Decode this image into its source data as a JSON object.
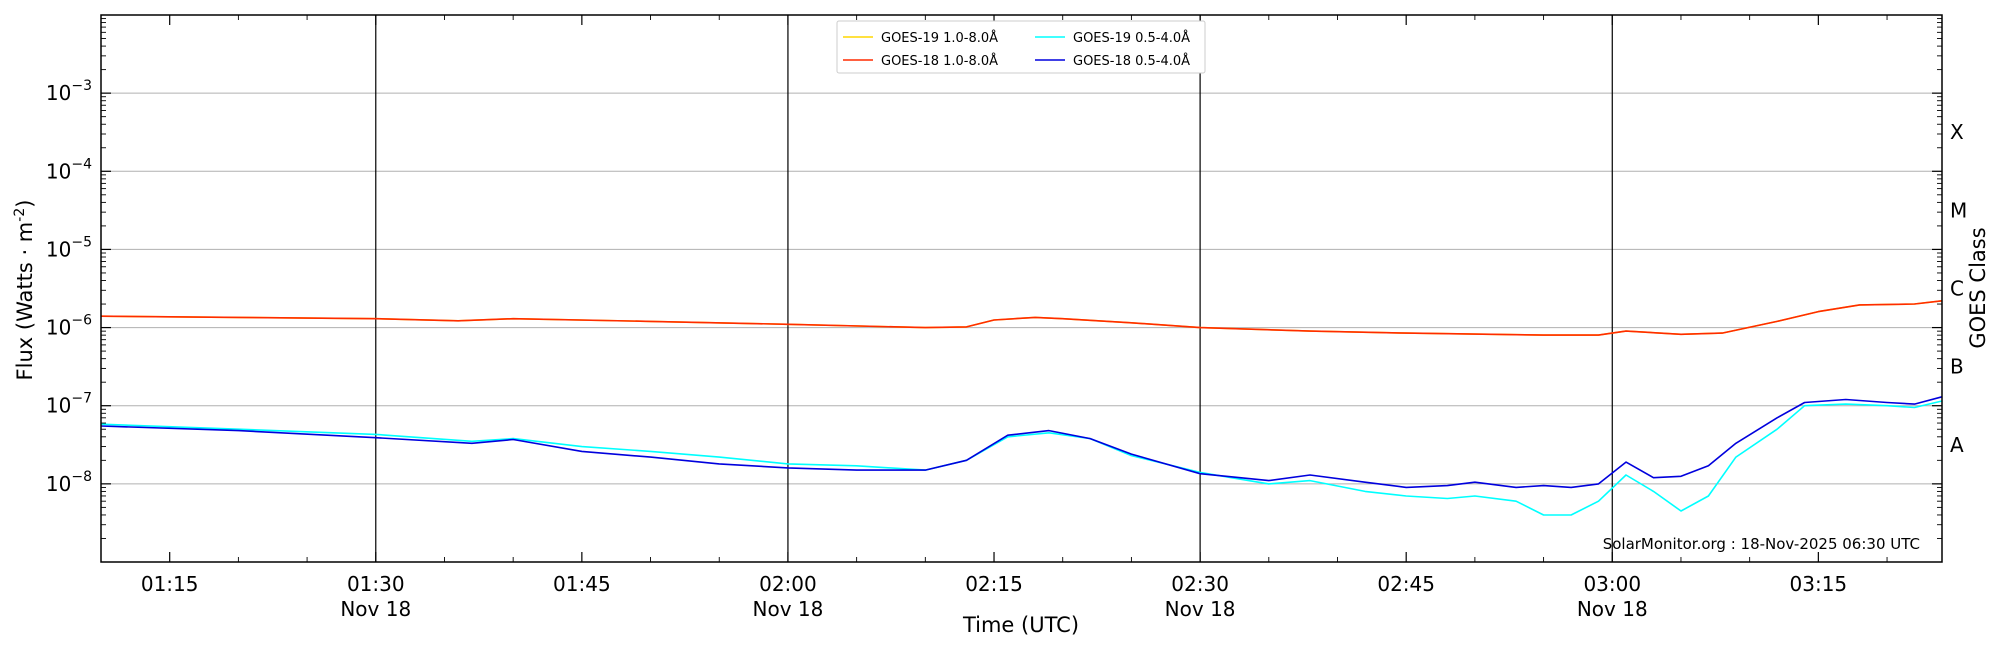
{
  "chart_data": {
    "type": "line",
    "xlabel": "Time (UTC)",
    "ylabel": "Flux (Watts · m",
    "ylabel_sup": "-2",
    "ylabel_close": ")",
    "right_label": "GOES Class",
    "watermark": "SolarMonitor.org : 18-Nov-2025 06:30 UTC",
    "y_scale": "log",
    "ylim": [
      1e-09,
      0.01
    ],
    "xlim": [
      "01:10",
      "03:24"
    ],
    "legend_placement": "top-center",
    "grid": "horizontal at decades, vertical at half-hours",
    "x_ticks": [
      {
        "time": "01:15",
        "label": "01:15",
        "sub": ""
      },
      {
        "time": "01:30",
        "label": "01:30",
        "sub": "Nov 18"
      },
      {
        "time": "01:45",
        "label": "01:45",
        "sub": ""
      },
      {
        "time": "02:00",
        "label": "02:00",
        "sub": "Nov 18"
      },
      {
        "time": "02:15",
        "label": "02:15",
        "sub": ""
      },
      {
        "time": "02:30",
        "label": "02:30",
        "sub": "Nov 18"
      },
      {
        "time": "02:45",
        "label": "02:45",
        "sub": ""
      },
      {
        "time": "03:00",
        "label": "03:00",
        "sub": "Nov 18"
      },
      {
        "time": "03:15",
        "label": "03:15",
        "sub": ""
      }
    ],
    "y_ticks": [
      {
        "base": "10",
        "exp": "−8",
        "value": 1e-08
      },
      {
        "base": "10",
        "exp": "−7",
        "value": 1e-07
      },
      {
        "base": "10",
        "exp": "−6",
        "value": 1e-06
      },
      {
        "base": "10",
        "exp": "−5",
        "value": 1e-05
      },
      {
        "base": "10",
        "exp": "−4",
        "value": 0.0001
      },
      {
        "base": "10",
        "exp": "−3",
        "value": 0.001
      }
    ],
    "class_labels": [
      {
        "label": "A",
        "value": 1e-08
      },
      {
        "label": "B",
        "value": 1e-07
      },
      {
        "label": "C",
        "value": 1e-06
      },
      {
        "label": "M",
        "value": 1e-05
      },
      {
        "label": "X",
        "value": 0.0001
      }
    ],
    "series": [
      {
        "name": "GOES-19 1.0-8.0Å",
        "color": "#ffd700",
        "x": [
          "01:10",
          "01:20",
          "01:30",
          "01:36",
          "01:40",
          "01:50",
          "02:00",
          "02:10",
          "02:13",
          "02:15",
          "02:18",
          "02:20",
          "02:25",
          "02:30",
          "02:38",
          "02:45",
          "02:55",
          "02:59",
          "03:01",
          "03:05",
          "03:08",
          "03:12",
          "03:15",
          "03:18",
          "03:22",
          "03:24"
        ],
        "y": [
          1.4e-06,
          1.35e-06,
          1.3e-06,
          1.22e-06,
          1.3e-06,
          1.2e-06,
          1.1e-06,
          1e-06,
          1.02e-06,
          1.25e-06,
          1.35e-06,
          1.3e-06,
          1.15e-06,
          1e-06,
          9e-07,
          8.5e-07,
          8e-07,
          8e-07,
          9e-07,
          8.2e-07,
          8.5e-07,
          1.2e-06,
          1.6e-06,
          1.95e-06,
          2e-06,
          2.2e-06
        ]
      },
      {
        "name": "GOES-18 1.0-8.0Å",
        "color": "#ff2b00",
        "x": [
          "01:10",
          "01:20",
          "01:30",
          "01:36",
          "01:40",
          "01:50",
          "02:00",
          "02:10",
          "02:13",
          "02:15",
          "02:18",
          "02:20",
          "02:25",
          "02:30",
          "02:38",
          "02:45",
          "02:55",
          "02:59",
          "03:01",
          "03:05",
          "03:08",
          "03:12",
          "03:15",
          "03:18",
          "03:22",
          "03:24"
        ],
        "y": [
          1.4e-06,
          1.35e-06,
          1.3e-06,
          1.22e-06,
          1.3e-06,
          1.2e-06,
          1.1e-06,
          1e-06,
          1.02e-06,
          1.25e-06,
          1.35e-06,
          1.3e-06,
          1.15e-06,
          1e-06,
          9e-07,
          8.5e-07,
          8e-07,
          8e-07,
          9e-07,
          8.2e-07,
          8.5e-07,
          1.2e-06,
          1.6e-06,
          1.95e-06,
          2e-06,
          2.2e-06
        ]
      },
      {
        "name": "GOES-19 0.5-4.0Å",
        "color": "#00ffff",
        "x": [
          "01:10",
          "01:20",
          "01:30",
          "01:37",
          "01:40",
          "01:45",
          "01:50",
          "01:55",
          "02:00",
          "02:05",
          "02:10",
          "02:13",
          "02:16",
          "02:19",
          "02:22",
          "02:25",
          "02:30",
          "02:35",
          "02:38",
          "02:42",
          "02:45",
          "02:48",
          "02:50",
          "02:53",
          "02:55",
          "02:57",
          "02:59",
          "03:01",
          "03:03",
          "03:05",
          "03:07",
          "03:09",
          "03:12",
          "03:14",
          "03:17",
          "03:20",
          "03:22",
          "03:24"
        ],
        "y": [
          5.8e-08,
          5e-08,
          4.3e-08,
          3.5e-08,
          3.8e-08,
          3e-08,
          2.6e-08,
          2.2e-08,
          1.8e-08,
          1.7e-08,
          1.5e-08,
          2e-08,
          4e-08,
          4.5e-08,
          3.8e-08,
          2.3e-08,
          1.4e-08,
          1e-08,
          1.1e-08,
          8e-09,
          7e-09,
          6.5e-09,
          7e-09,
          6e-09,
          4e-09,
          4e-09,
          6e-09,
          1.3e-08,
          8e-09,
          4.5e-09,
          7e-09,
          2.2e-08,
          5e-08,
          1e-07,
          1.05e-07,
          1e-07,
          9.5e-08,
          1.15e-07
        ]
      },
      {
        "name": "GOES-18 0.5-4.0Å",
        "color": "#0000dd",
        "x": [
          "01:10",
          "01:20",
          "01:30",
          "01:37",
          "01:40",
          "01:45",
          "01:50",
          "01:55",
          "02:00",
          "02:05",
          "02:10",
          "02:13",
          "02:16",
          "02:19",
          "02:22",
          "02:25",
          "02:30",
          "02:35",
          "02:38",
          "02:42",
          "02:45",
          "02:48",
          "02:50",
          "02:53",
          "02:55",
          "02:57",
          "02:59",
          "03:01",
          "03:03",
          "03:05",
          "03:07",
          "03:09",
          "03:12",
          "03:14",
          "03:17",
          "03:20",
          "03:22",
          "03:24"
        ],
        "y": [
          5.5e-08,
          4.8e-08,
          3.9e-08,
          3.3e-08,
          3.7e-08,
          2.6e-08,
          2.2e-08,
          1.8e-08,
          1.6e-08,
          1.5e-08,
          1.5e-08,
          2e-08,
          4.2e-08,
          4.8e-08,
          3.8e-08,
          2.4e-08,
          1.35e-08,
          1.1e-08,
          1.3e-08,
          1.05e-08,
          9e-09,
          9.5e-09,
          1.05e-08,
          9e-09,
          9.5e-09,
          9e-09,
          1e-08,
          1.9e-08,
          1.2e-08,
          1.25e-08,
          1.7e-08,
          3.3e-08,
          7e-08,
          1.1e-07,
          1.2e-07,
          1.1e-07,
          1.05e-07,
          1.3e-07
        ]
      }
    ]
  }
}
